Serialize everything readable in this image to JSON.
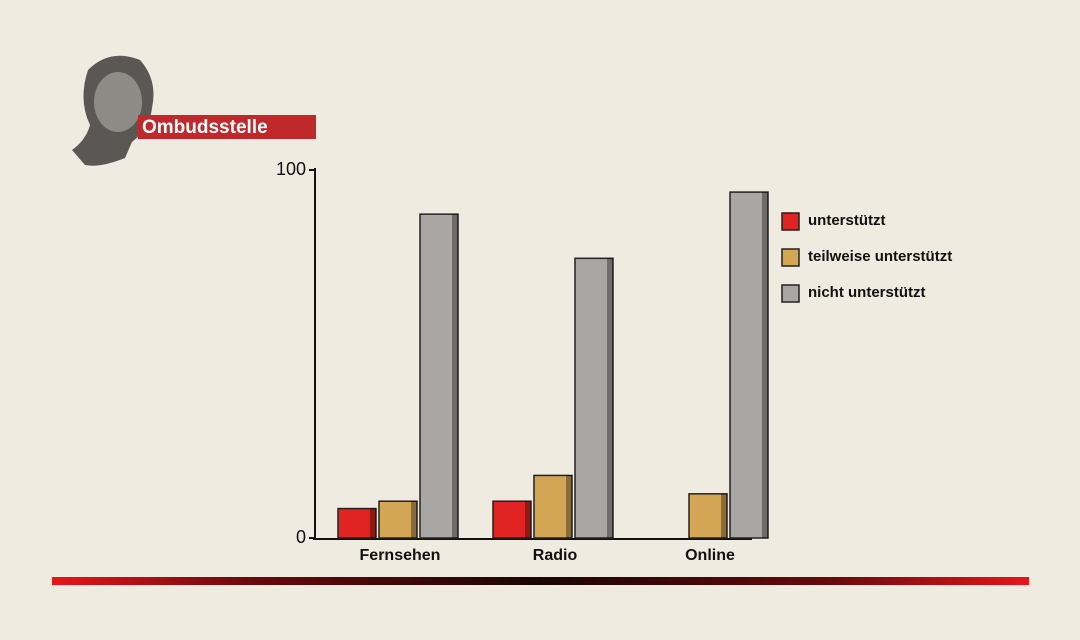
{
  "brand": "Ombudsstelle",
  "chart_data": {
    "type": "bar",
    "categories": [
      "Fernsehen",
      "Radio",
      "Online"
    ],
    "series": [
      {
        "name": "unterstützt",
        "color": "#e02424",
        "values": [
          8,
          10,
          0
        ]
      },
      {
        "name": "teilweise unterstützt",
        "color": "#d3a655",
        "values": [
          10,
          17,
          12
        ]
      },
      {
        "name": "nicht unterstützt",
        "color": "#a9a7a3",
        "values": [
          88,
          76,
          94
        ]
      }
    ],
    "ylim": [
      0,
      100
    ],
    "yticks": [
      0,
      100
    ],
    "legend": "right"
  }
}
